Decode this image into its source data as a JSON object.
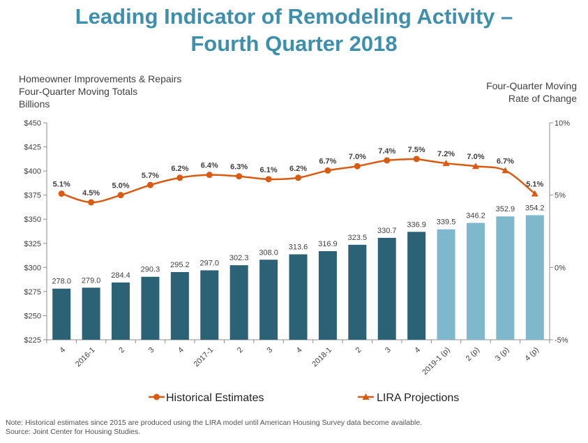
{
  "title_line1": "Leading Indicator of Remodeling Activity –",
  "title_line2": "Fourth Quarter 2018",
  "left_axis_label": [
    "Homeowner Improvements  & Repairs",
    "Four-Quarter  Moving Totals",
    "Billions"
  ],
  "right_axis_label": [
    "Four-Quarter Moving",
    "Rate of Change"
  ],
  "note": "Note: Historical estimates since 2015 are produced using the LIRA model until American Housing Survey data become available.",
  "source": "Source: Joint Center for Housing Studies.",
  "colors": {
    "historical_bar": "#2b6275",
    "projection_bar": "#7fb7cc",
    "line": "#d95a10",
    "title": "#3e8fab"
  },
  "chart_data": {
    "type": "bar",
    "categories": [
      "4",
      "2016-1",
      "2",
      "3",
      "4",
      "2017-1",
      "2",
      "3",
      "4",
      "2018-1",
      "2",
      "3",
      "4",
      "2019-1 (p)",
      "2 (p)",
      "3 (p)",
      "4 (p)"
    ],
    "values": [
      278.0,
      279.0,
      284.4,
      290.3,
      295.2,
      297.0,
      302.3,
      308.0,
      313.6,
      316.9,
      323.5,
      330.7,
      336.9,
      339.5,
      346.2,
      352.9,
      354.2
    ],
    "value_labels": [
      "278.0",
      "279.0",
      "284.4",
      "290.3",
      "295.2",
      "297.0",
      "302.3",
      "308.0",
      "313.6",
      "316.9",
      "323.5",
      "330.7",
      "336.9",
      "339.5",
      "346.2",
      "352.9",
      "354.2"
    ],
    "projected_from_index": 13,
    "rate_of_change": [
      5.1,
      4.5,
      5.0,
      5.7,
      6.2,
      6.4,
      6.3,
      6.1,
      6.2,
      6.7,
      7.0,
      7.4,
      7.5,
      7.2,
      7.0,
      6.7,
      5.1
    ],
    "rate_labels": [
      "5.1%",
      "4.5%",
      "5.0%",
      "5.7%",
      "6.2%",
      "6.4%",
      "6.3%",
      "6.1%",
      "6.2%",
      "6.7%",
      "7.0%",
      "7.4%",
      "7.5%",
      "7.2%",
      "7.0%",
      "6.7%",
      "5.1%"
    ],
    "series": [
      {
        "name": "Historical Estimates",
        "type": "line",
        "marker": "circle"
      },
      {
        "name": "LIRA Projections",
        "type": "line",
        "marker": "triangle"
      }
    ],
    "ylim": [
      225,
      450
    ],
    "yticks": [
      "$225",
      "$250",
      "$275",
      "$300",
      "$325",
      "$350",
      "$375",
      "$400",
      "$425",
      "$450"
    ],
    "y2lim": [
      -5,
      10
    ],
    "y2ticks": [
      "-5%",
      "0%",
      "5%",
      "10%"
    ],
    "legend_position": "bottom",
    "grid": false
  }
}
